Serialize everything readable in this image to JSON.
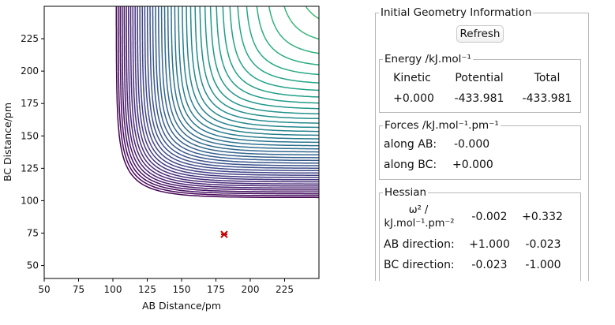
{
  "plot": {
    "xlabel": "AB Distance/pm",
    "ylabel": "BC Distance/pm",
    "xticks": [
      "50",
      "75",
      "100",
      "125",
      "150",
      "175",
      "200",
      "225"
    ],
    "yticks": [
      "50",
      "75",
      "100",
      "125",
      "150",
      "175",
      "200",
      "225"
    ],
    "xlim": [
      50,
      250
    ],
    "ylim": [
      40,
      250
    ],
    "marker": {
      "x": 181,
      "y": 74,
      "color": "#cc0000"
    },
    "colormap": "viridis"
  },
  "panel": {
    "title": "Initial Geometry Information",
    "refresh_label": "Refresh",
    "energy": {
      "title": "Energy /kJ.mol⁻¹",
      "headers": [
        "Kinetic",
        "Potential",
        "Total"
      ],
      "values": [
        "+0.000",
        "-433.981",
        "-433.981"
      ]
    },
    "forces": {
      "title": "Forces /kJ.mol⁻¹.pm⁻¹",
      "ab_label": "along AB:",
      "ab_value": "-0.000",
      "bc_label": "along BC:",
      "bc_value": "+0.000"
    },
    "hessian": {
      "title": "Hessian",
      "omega_label_line1": "ω² /",
      "omega_label_line2": "kJ.mol⁻¹.pm⁻²",
      "omega_values": [
        "-0.002",
        "+0.332"
      ],
      "ab_label": "AB direction:",
      "ab_values": [
        "+1.000",
        "-0.023"
      ],
      "bc_label": "BC direction:",
      "bc_values": [
        "-0.023",
        "-1.000"
      ]
    }
  }
}
